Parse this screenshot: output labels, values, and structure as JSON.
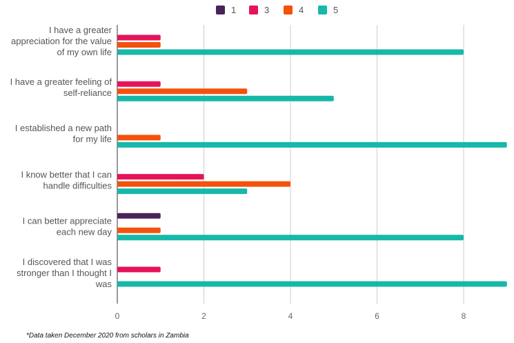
{
  "chart_data": {
    "type": "bar",
    "orientation": "horizontal",
    "categories": [
      [
        "I have a greater",
        "appreciation for the value",
        "of my own life"
      ],
      [
        "I have a greater feeling of",
        "self-reliance"
      ],
      [
        "I established a new path",
        "for my life"
      ],
      [
        "I know better that I can",
        "handle difficulties"
      ],
      [
        "I can better appreciate",
        "each new day"
      ],
      [
        "I discovered that I was",
        "stronger than I thought I",
        "was"
      ]
    ],
    "series": [
      {
        "name": "1",
        "color": "#4a2458",
        "values": [
          0,
          0,
          0,
          0,
          1,
          0
        ]
      },
      {
        "name": "3",
        "color": "#e6135a",
        "values": [
          1,
          1,
          0,
          2,
          0,
          1
        ]
      },
      {
        "name": "4",
        "color": "#f4510b",
        "values": [
          1,
          3,
          1,
          4,
          1,
          0
        ]
      },
      {
        "name": "5",
        "color": "#17b8a9",
        "values": [
          8,
          5,
          9,
          3,
          8,
          9
        ]
      }
    ],
    "xlim": [
      0,
      9
    ],
    "xticks": [
      0,
      2,
      4,
      6,
      8
    ],
    "grid": true,
    "legend_position": "top"
  },
  "footnote": "*Data taken December 2020 from scholars in Zambia"
}
